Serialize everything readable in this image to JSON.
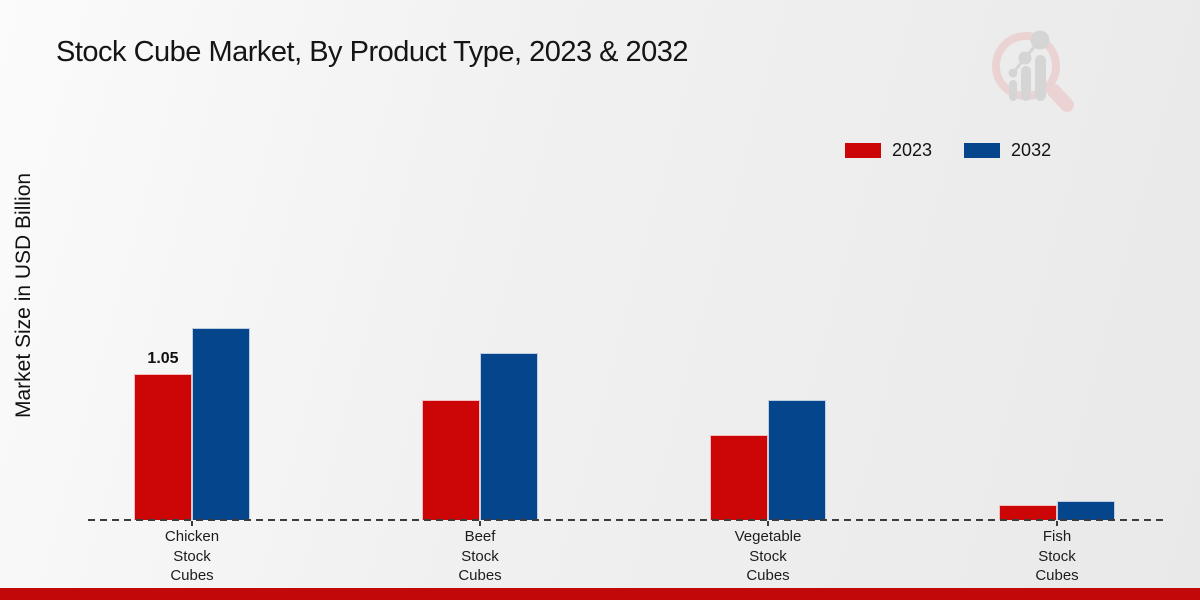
{
  "chart_data": {
    "type": "bar",
    "title": "Stock Cube Market, By Product Type, 2023 & 2032",
    "ylabel": "Market Size in USD Billion",
    "xlabel": "",
    "categories": [
      "Chicken Stock Cubes",
      "Beef Stock Cubes",
      "Vegetable Stock Cubes",
      "Fish Stock Cubes"
    ],
    "series": [
      {
        "name": "2023",
        "color": "#cc0606",
        "values": [
          1.05,
          0.86,
          0.61,
          0.11
        ]
      },
      {
        "name": "2032",
        "color": "#04458c",
        "values": [
          1.38,
          1.2,
          0.86,
          0.14
        ]
      }
    ],
    "ylim": [
      0,
      1.5
    ],
    "grid": false,
    "legend_position": "top-right",
    "axis_style": "dashed-baseline-over-bars",
    "annotations": [
      {
        "series": "2023",
        "category_index": 0,
        "text": "1.05"
      }
    ]
  },
  "branding": {
    "logo_icon": "market-research-future-watermark",
    "logo_ring_color": "#ecd3d3",
    "logo_bars_color": "#d5d5d5",
    "accent_bar_color": "#c20808"
  },
  "colors": {
    "text": "#151515",
    "baseline": "#3c3c3c"
  }
}
